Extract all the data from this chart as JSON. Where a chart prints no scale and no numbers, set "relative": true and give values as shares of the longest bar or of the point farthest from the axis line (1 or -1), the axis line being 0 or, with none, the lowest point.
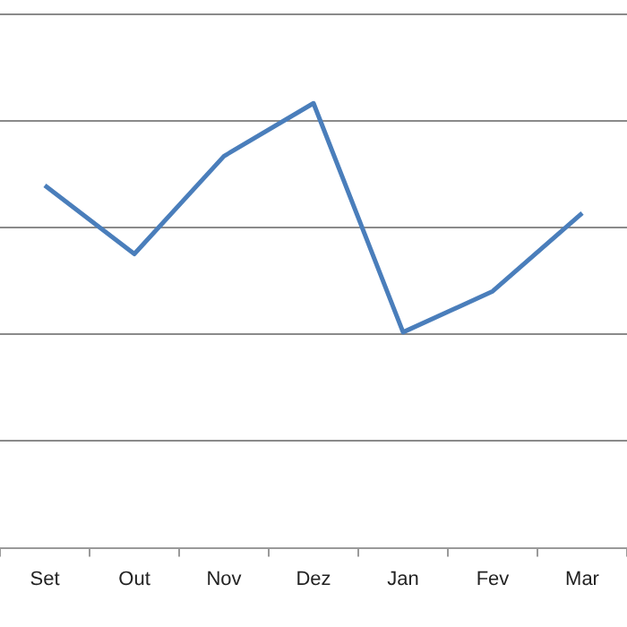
{
  "chart_data": {
    "type": "line",
    "relative": true,
    "grid": "y",
    "legend": false,
    "marker": "none",
    "line_style": "solid",
    "categories": [
      "Set",
      "Out",
      "Nov",
      "Dez",
      "Jan",
      "Fev",
      "Mar"
    ],
    "series": [
      {
        "color": "#4a7ebb",
        "values": [
          0.815,
          0.661,
          0.881,
          1,
          0.485,
          0.577,
          0.753
        ]
      }
    ]
  }
}
